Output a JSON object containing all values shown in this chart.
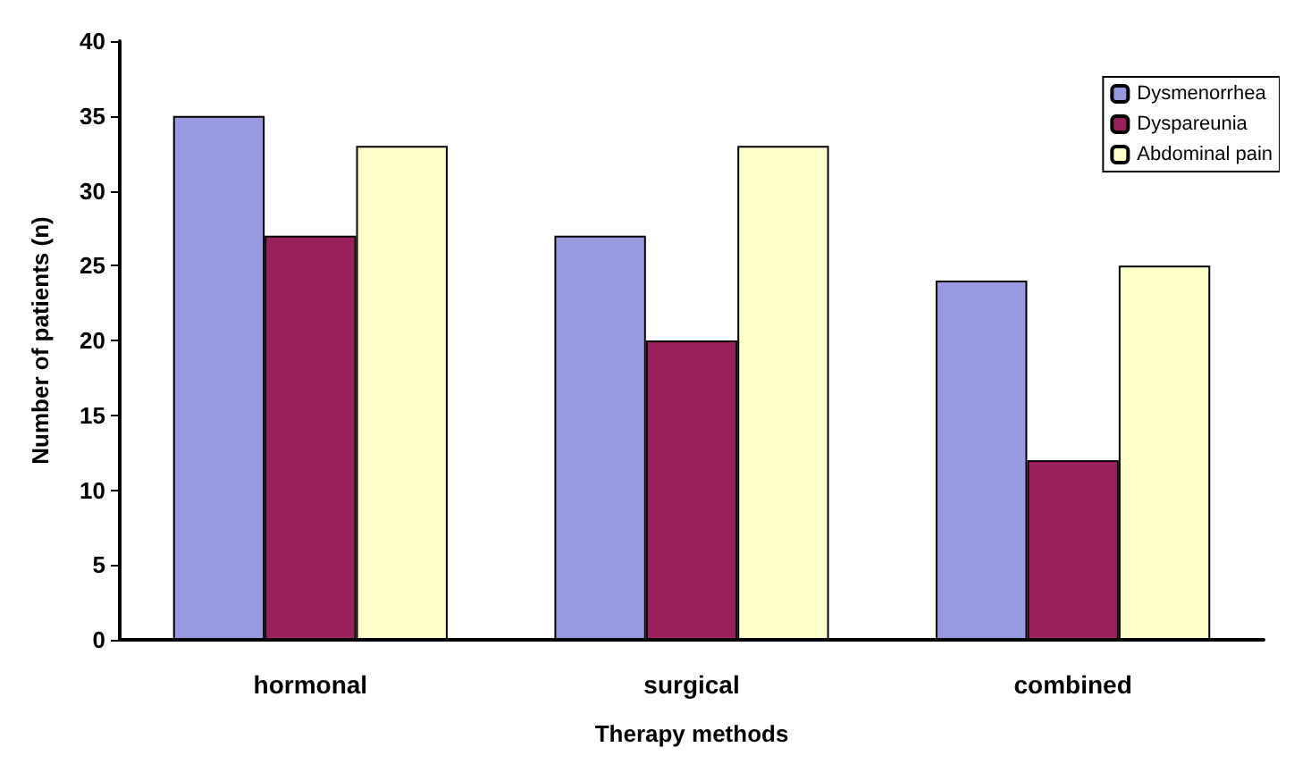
{
  "chart_data": {
    "type": "bar",
    "xlabel": "Therapy methods",
    "ylabel": "Number of patients (n)",
    "categories": [
      "hormonal",
      "surgical",
      "combined"
    ],
    "series": [
      {
        "name": "Dysmenorrhea",
        "color": "#9999e0",
        "values": [
          35,
          27,
          24
        ]
      },
      {
        "name": "Dyspareunia",
        "color": "#99205a",
        "values": [
          27,
          20,
          12
        ]
      },
      {
        "name": "Abdominal pain",
        "color": "#ffffcc",
        "values": [
          33,
          33,
          25
        ]
      }
    ],
    "ylim": [
      0,
      40
    ],
    "yticks": [
      0,
      5,
      10,
      15,
      20,
      25,
      30,
      35,
      40
    ],
    "grid": false,
    "legend": "top right"
  }
}
